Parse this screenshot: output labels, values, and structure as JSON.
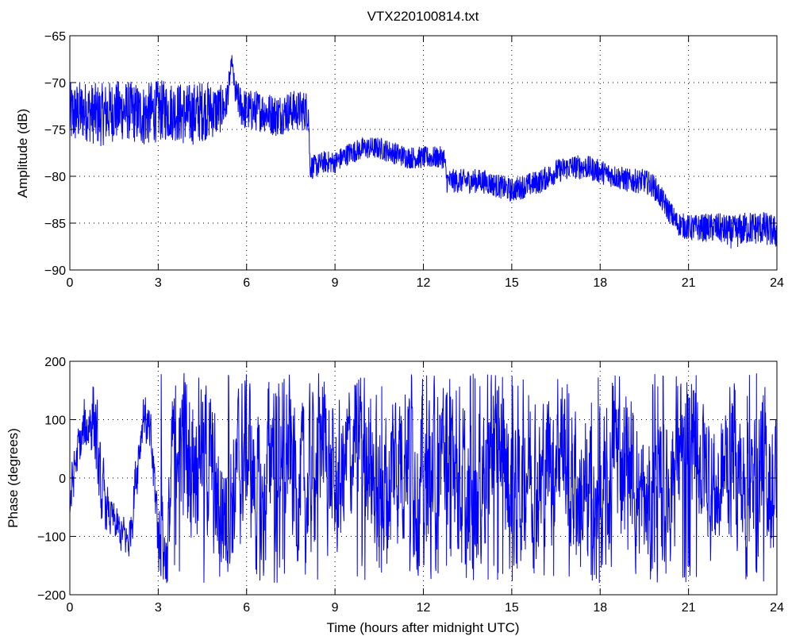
{
  "figure": {
    "title": "VTX220100814.txt",
    "line_color": "#0000ff"
  },
  "chart_data": [
    {
      "type": "line",
      "title": "VTX220100814.txt",
      "xlabel": "",
      "ylabel": "Amplitude (dB)",
      "xlim": [
        0,
        24
      ],
      "ylim": [
        -90,
        -65
      ],
      "xticks": [
        0,
        3,
        6,
        9,
        12,
        15,
        18,
        21,
        24
      ],
      "yticks": [
        -90,
        -85,
        -80,
        -75,
        -70,
        -65
      ],
      "xtick_labels": [
        "0",
        "3",
        "6",
        "9",
        "12",
        "15",
        "18",
        "21",
        "24"
      ],
      "ytick_labels": [
        "−90",
        "−85",
        "−80",
        "−75",
        "−70",
        "−65"
      ],
      "grid": true,
      "series": [
        {
          "color": "#0000ff",
          "x": [
            0,
            0.5,
            1,
            1.5,
            2,
            2.5,
            3,
            3.5,
            4,
            4.5,
            5,
            5.3,
            5.45,
            5.5,
            5.6,
            5.8,
            6,
            6.5,
            7,
            7.5,
            8,
            8.1,
            8.15,
            8.3,
            8.6,
            9,
            9.5,
            10,
            10.5,
            11,
            11.5,
            12,
            12.5,
            12.7,
            12.8,
            13,
            13.5,
            14,
            14.5,
            15,
            15.5,
            16,
            16.5,
            17,
            17.5,
            18,
            18.5,
            19,
            19.5,
            19.8,
            20,
            20.3,
            20.6,
            21,
            21.5,
            22,
            22.5,
            23,
            23.5,
            24
          ],
          "values": [
            -73.5,
            -73,
            -73.5,
            -73,
            -73,
            -73.5,
            -73,
            -73,
            -73.5,
            -73,
            -73,
            -72.5,
            -69,
            -67.5,
            -71,
            -72.5,
            -73,
            -73,
            -73.5,
            -73,
            -73,
            -73,
            -79,
            -79,
            -78.5,
            -78.5,
            -77.5,
            -77,
            -77,
            -77.5,
            -78,
            -78,
            -78,
            -78,
            -80.5,
            -80.5,
            -80.5,
            -80.5,
            -81,
            -81.5,
            -81,
            -80.5,
            -79.5,
            -79,
            -79,
            -79.5,
            -80,
            -80.5,
            -80.5,
            -81,
            -82,
            -83.5,
            -85,
            -85.5,
            -85.5,
            -85.5,
            -86,
            -85.5,
            -85.5,
            -86
          ],
          "spread": [
            3.5,
            3.2,
            3.4,
            3.3,
            3.2,
            3.4,
            3.3,
            3.2,
            3.4,
            3.3,
            2.8,
            2.2,
            1,
            0.5,
            1.5,
            2.2,
            2.3,
            2.2,
            2.3,
            2.2,
            2.2,
            2.2,
            1.3,
            1.3,
            1.2,
            1.2,
            1.2,
            1.2,
            1.2,
            1.2,
            1.2,
            1.2,
            1.2,
            1.2,
            1.3,
            1.3,
            1.3,
            1.3,
            1.3,
            1.3,
            1.3,
            1.3,
            1.3,
            1.3,
            1.3,
            1.3,
            1.3,
            1.3,
            1.3,
            1.3,
            1.3,
            1.3,
            1.3,
            1.4,
            1.5,
            1.6,
            1.8,
            1.8,
            1.8,
            1.8
          ]
        }
      ]
    },
    {
      "type": "line",
      "title": "",
      "xlabel": "Time (hours after midnight UTC)",
      "ylabel": "Phase (degrees)",
      "xlim": [
        0,
        24
      ],
      "ylim": [
        -200,
        200
      ],
      "xticks": [
        0,
        3,
        6,
        9,
        12,
        15,
        18,
        21,
        24
      ],
      "yticks": [
        -200,
        -100,
        0,
        100,
        200
      ],
      "xtick_labels": [
        "0",
        "3",
        "6",
        "9",
        "12",
        "15",
        "18",
        "21",
        "24"
      ],
      "ytick_labels": [
        "−200",
        "−100",
        "0",
        "100",
        "200"
      ],
      "grid": true,
      "series": [
        {
          "color": "#0000ff",
          "x": [
            0,
            0.2,
            0.5,
            0.8,
            1.0,
            1.3,
            1.6,
            2.0,
            2.3,
            2.5,
            2.8,
            3.0,
            3.3,
            3.6,
            4.0,
            4.5,
            5.0,
            5.5,
            6.0,
            6.5,
            7.0,
            7.5,
            8.0,
            8.5,
            9.0,
            9.5,
            10.0,
            10.5,
            11.0,
            11.5,
            12.0,
            12.5,
            13.0,
            13.5,
            14.0,
            14.5,
            15.0,
            15.5,
            16.0,
            16.5,
            17.0,
            17.5,
            18.0,
            18.5,
            19.0,
            19.5,
            20.0,
            20.5,
            21.0,
            21.5,
            22.0,
            22.5,
            23.0,
            23.5,
            24.0
          ],
          "values": [
            -40,
            30,
            80,
            120,
            -20,
            -60,
            -90,
            -110,
            40,
            120,
            30,
            -100,
            -130,
            150,
            20,
            90,
            -60,
            -30,
            60,
            -80,
            140,
            20,
            -40,
            90,
            -30,
            40,
            110,
            -70,
            30,
            80,
            -50,
            30,
            100,
            -100,
            20,
            130,
            -60,
            40,
            -20,
            90,
            20,
            -60,
            -120,
            60,
            20,
            -60,
            -80,
            30,
            110,
            20,
            -30,
            60,
            -70,
            40,
            -40
          ],
          "jitter": [
            60,
            50,
            60,
            90,
            80,
            40,
            40,
            40,
            60,
            50,
            60,
            80,
            90,
            150,
            170,
            140,
            160,
            150,
            150,
            160,
            140,
            150,
            150,
            150,
            140,
            140,
            150,
            170,
            170,
            170,
            170,
            170,
            170,
            170,
            170,
            170,
            170,
            160,
            160,
            160,
            160,
            170,
            170,
            170,
            150,
            140,
            150,
            150,
            150,
            140,
            140,
            150,
            150,
            150,
            150
          ]
        }
      ]
    }
  ]
}
